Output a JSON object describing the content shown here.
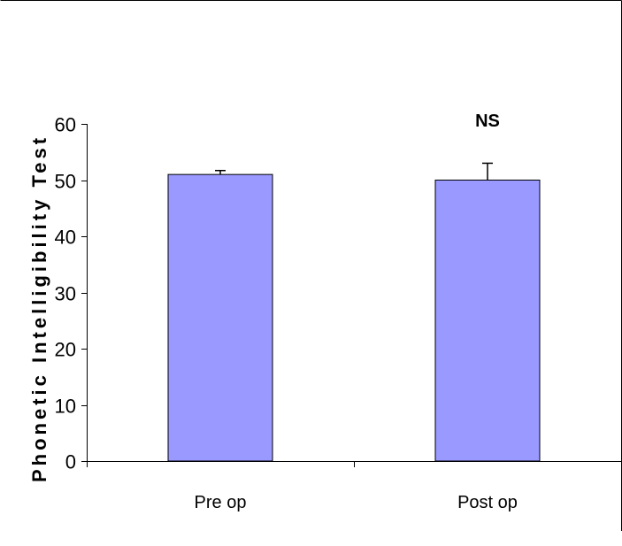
{
  "chart_data": {
    "type": "bar",
    "title": "",
    "xlabel": "",
    "ylabel": "Phonetic Intelligibility Test",
    "categories": [
      "Pre op",
      "Post op"
    ],
    "series": [
      {
        "values": [
          51,
          50
        ],
        "error_plus": [
          0.7,
          3.0
        ],
        "color": "#9999ff"
      }
    ],
    "ylim": [
      0,
      60
    ],
    "yticks": [
      "0",
      "10",
      "20",
      "30",
      "40",
      "50",
      "60"
    ],
    "annotations": [
      {
        "text": "NS",
        "category": "Post op"
      }
    ],
    "grid": false,
    "legend": "none"
  }
}
